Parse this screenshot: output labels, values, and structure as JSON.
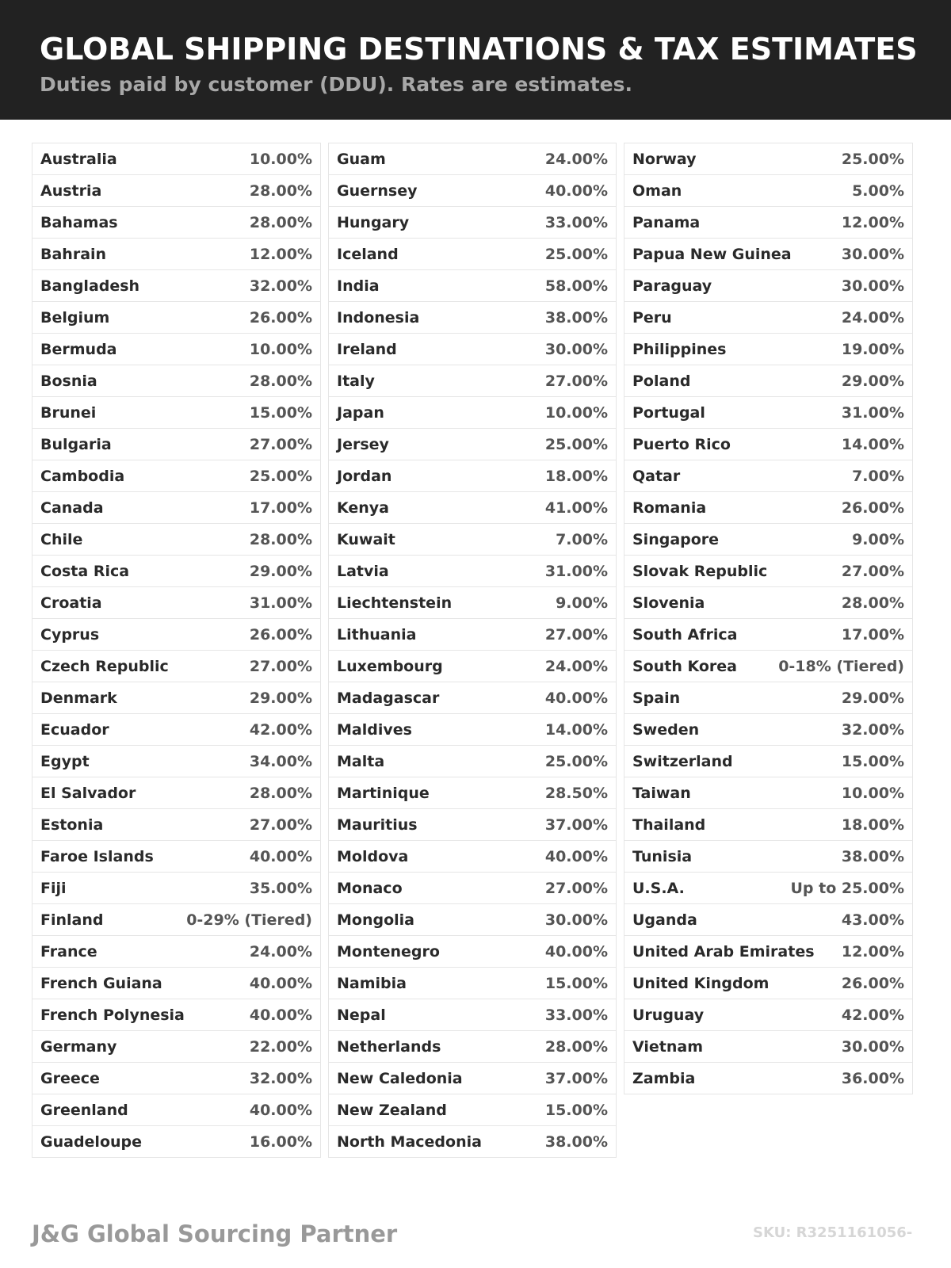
{
  "header": {
    "title": "GLOBAL SHIPPING DESTINATIONS & TAX ESTIMATES",
    "subtitle": "Duties paid by customer (DDU). Rates are estimates."
  },
  "columns": [
    [
      [
        "Australia",
        "10.00%"
      ],
      [
        "Austria",
        "28.00%"
      ],
      [
        "Bahamas",
        "28.00%"
      ],
      [
        "Bahrain",
        "12.00%"
      ],
      [
        "Bangladesh",
        "32.00%"
      ],
      [
        "Belgium",
        "26.00%"
      ],
      [
        "Bermuda",
        "10.00%"
      ],
      [
        "Bosnia",
        "28.00%"
      ],
      [
        "Brunei",
        "15.00%"
      ],
      [
        "Bulgaria",
        "27.00%"
      ],
      [
        "Cambodia",
        "25.00%"
      ],
      [
        "Canada",
        "17.00%"
      ],
      [
        "Chile",
        "28.00%"
      ],
      [
        "Costa Rica",
        "29.00%"
      ],
      [
        "Croatia",
        "31.00%"
      ],
      [
        "Cyprus",
        "26.00%"
      ],
      [
        "Czech Republic",
        "27.00%"
      ],
      [
        "Denmark",
        "29.00%"
      ],
      [
        "Ecuador",
        "42.00%"
      ],
      [
        "Egypt",
        "34.00%"
      ],
      [
        "El Salvador",
        "28.00%"
      ],
      [
        "Estonia",
        "27.00%"
      ],
      [
        "Faroe Islands",
        "40.00%"
      ],
      [
        "Fiji",
        "35.00%"
      ],
      [
        "Finland",
        "0-29% (Tiered)"
      ],
      [
        "France",
        "24.00%"
      ],
      [
        "French Guiana",
        "40.00%"
      ],
      [
        "French Polynesia",
        "40.00%"
      ],
      [
        "Germany",
        "22.00%"
      ],
      [
        "Greece",
        "32.00%"
      ],
      [
        "Greenland",
        "40.00%"
      ],
      [
        "Guadeloupe",
        "16.00%"
      ]
    ],
    [
      [
        "Guam",
        "24.00%"
      ],
      [
        "Guernsey",
        "40.00%"
      ],
      [
        "Hungary",
        "33.00%"
      ],
      [
        "Iceland",
        "25.00%"
      ],
      [
        "India",
        "58.00%"
      ],
      [
        "Indonesia",
        "38.00%"
      ],
      [
        "Ireland",
        "30.00%"
      ],
      [
        "Italy",
        "27.00%"
      ],
      [
        "Japan",
        "10.00%"
      ],
      [
        "Jersey",
        "25.00%"
      ],
      [
        "Jordan",
        "18.00%"
      ],
      [
        "Kenya",
        "41.00%"
      ],
      [
        "Kuwait",
        "7.00%"
      ],
      [
        "Latvia",
        "31.00%"
      ],
      [
        "Liechtenstein",
        "9.00%"
      ],
      [
        "Lithuania",
        "27.00%"
      ],
      [
        "Luxembourg",
        "24.00%"
      ],
      [
        "Madagascar",
        "40.00%"
      ],
      [
        "Maldives",
        "14.00%"
      ],
      [
        "Malta",
        "25.00%"
      ],
      [
        "Martinique",
        "28.50%"
      ],
      [
        "Mauritius",
        "37.00%"
      ],
      [
        "Moldova",
        "40.00%"
      ],
      [
        "Monaco",
        "27.00%"
      ],
      [
        "Mongolia",
        "30.00%"
      ],
      [
        "Montenegro",
        "40.00%"
      ],
      [
        "Namibia",
        "15.00%"
      ],
      [
        "Nepal",
        "33.00%"
      ],
      [
        "Netherlands",
        "28.00%"
      ],
      [
        "New Caledonia",
        "37.00%"
      ],
      [
        "New Zealand",
        "15.00%"
      ],
      [
        "North Macedonia",
        "38.00%"
      ]
    ],
    [
      [
        "Norway",
        "25.00%"
      ],
      [
        "Oman",
        "5.00%"
      ],
      [
        "Panama",
        "12.00%"
      ],
      [
        "Papua New Guinea",
        "30.00%"
      ],
      [
        "Paraguay",
        "30.00%"
      ],
      [
        "Peru",
        "24.00%"
      ],
      [
        "Philippines",
        "19.00%"
      ],
      [
        "Poland",
        "29.00%"
      ],
      [
        "Portugal",
        "31.00%"
      ],
      [
        "Puerto Rico",
        "14.00%"
      ],
      [
        "Qatar",
        "7.00%"
      ],
      [
        "Romania",
        "26.00%"
      ],
      [
        "Singapore",
        "9.00%"
      ],
      [
        "Slovak Republic",
        "27.00%"
      ],
      [
        "Slovenia",
        "28.00%"
      ],
      [
        "South Africa",
        "17.00%"
      ],
      [
        "South Korea",
        "0-18% (Tiered)"
      ],
      [
        "Spain",
        "29.00%"
      ],
      [
        "Sweden",
        "32.00%"
      ],
      [
        "Switzerland",
        "15.00%"
      ],
      [
        "Taiwan",
        "10.00%"
      ],
      [
        "Thailand",
        "18.00%"
      ],
      [
        "Tunisia",
        "38.00%"
      ],
      [
        "U.S.A.",
        "Up to 25.00%"
      ],
      [
        "Uganda",
        "43.00%"
      ],
      [
        "United Arab Emirates",
        "12.00%"
      ],
      [
        "United Kingdom",
        "26.00%"
      ],
      [
        "Uruguay",
        "42.00%"
      ],
      [
        "Vietnam",
        "30.00%"
      ],
      [
        "Zambia",
        "36.00%"
      ]
    ]
  ],
  "footer": {
    "brand": "J&G Global Sourcing Partner",
    "sku": "SKU: R3251161056-"
  }
}
